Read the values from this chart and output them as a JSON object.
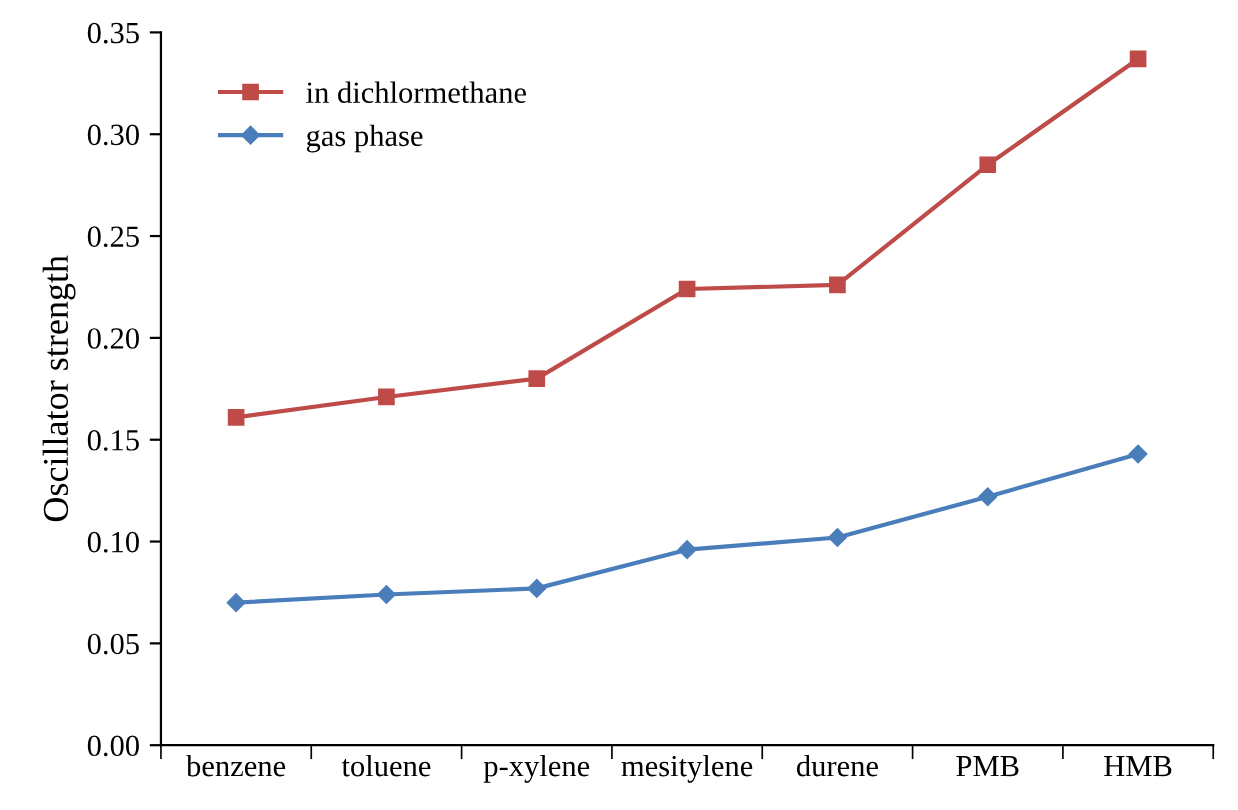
{
  "chart_data": {
    "type": "line",
    "ylabel": "Oscillator strength",
    "categories": [
      "benzene",
      "toluene",
      "p-xylene",
      "mesitylene",
      "durene",
      "PMB",
      "HMB"
    ],
    "series": [
      {
        "name": "in dichlormethane",
        "color": "#be4b48",
        "marker": "square",
        "values": [
          0.161,
          0.171,
          0.18,
          0.224,
          0.226,
          0.285,
          0.337
        ]
      },
      {
        "name": "gas phase",
        "color": "#4a7ebb",
        "marker": "diamond",
        "values": [
          0.07,
          0.074,
          0.077,
          0.096,
          0.102,
          0.122,
          0.143
        ]
      }
    ],
    "ylim": [
      0,
      0.35
    ],
    "yticks": [
      {
        "value": 0,
        "label": "0.00"
      },
      {
        "value": 0.05,
        "label": "0.05"
      },
      {
        "value": 0.1,
        "label": "0.10"
      },
      {
        "value": 0.15,
        "label": "0.15"
      },
      {
        "value": 0.2,
        "label": "0.20"
      },
      {
        "value": 0.25,
        "label": "0.25"
      },
      {
        "value": 0.3,
        "label": "0.30"
      },
      {
        "value": 0.35,
        "label": "0.35"
      }
    ],
    "grid": false,
    "legend": "top left",
    "line_style": "solid"
  }
}
